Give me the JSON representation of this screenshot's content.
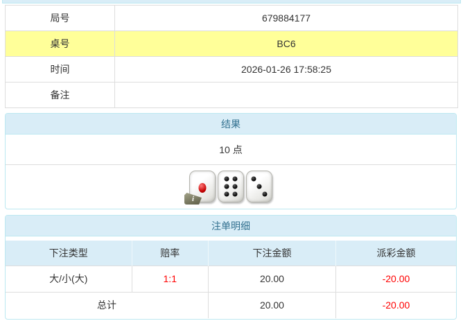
{
  "game_info": {
    "rows": [
      {
        "label": "局号",
        "value": "679884177"
      },
      {
        "label": "桌号",
        "value": "BC6"
      },
      {
        "label": "时间",
        "value": "2026-01-26 17:58:25"
      },
      {
        "label": "备注",
        "value": ""
      }
    ]
  },
  "result_panel": {
    "title": "结果",
    "points_text": "10 点",
    "dice": [
      1,
      6,
      3
    ],
    "dice_total": 10,
    "info_badge": "i"
  },
  "bets_panel": {
    "title": "注单明细",
    "columns": [
      "下注类型",
      "赔率",
      "下注金额",
      "派彩金额"
    ],
    "rows": [
      {
        "type": "大/小(大)",
        "odds": "1:1",
        "bet": "20.00",
        "payout": "-20.00"
      }
    ],
    "total": {
      "label": "总计",
      "bet": "20.00",
      "payout": "-20.00"
    }
  },
  "colors": {
    "panel_header_bg": "#d9edf7",
    "panel_header_text": "#31708f",
    "panel_border": "#bce8f1",
    "highlight_row": "#ffff99",
    "negative": "#ff0000",
    "text": "#333333",
    "row_border": "#dddddd"
  }
}
